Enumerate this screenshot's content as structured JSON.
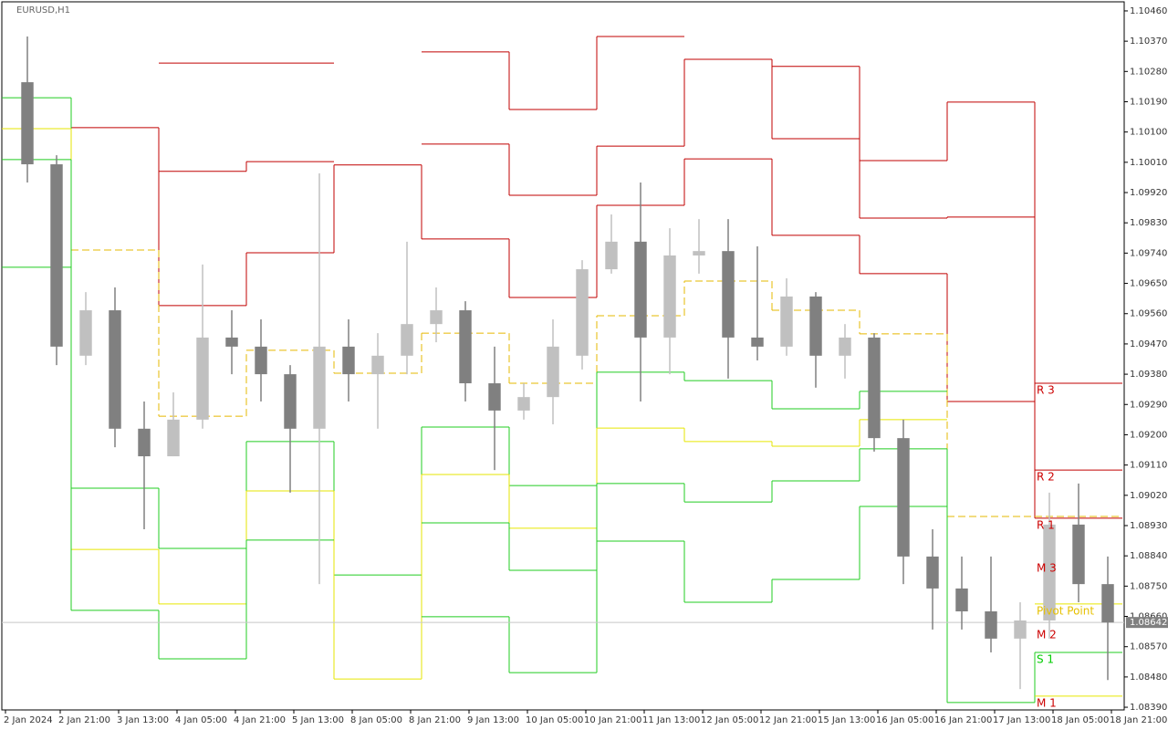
{
  "chart_data": {
    "type": "candlestick",
    "title": "EURUSD,H1",
    "up_color": "#c0c0c0",
    "down_color": "#808080",
    "open": [
      1.10248,
      1.10004,
      1.09435,
      1.0957,
      1.09218,
      1.09136,
      1.09245,
      1.09489,
      1.09462,
      1.0938,
      1.09218,
      1.09462,
      1.0938,
      1.09435,
      1.09529,
      1.0957,
      1.09353,
      1.09272,
      1.09312,
      1.09435,
      1.09692,
      1.09774,
      1.09489,
      1.09733,
      1.09746,
      1.09489,
      1.09462,
      1.09611,
      1.09435,
      1.09489,
      1.0919,
      1.08838,
      1.08743,
      1.08675,
      1.08594,
      1.08648,
      1.08933,
      1.08756
    ],
    "high": [
      1.10384,
      1.10031,
      1.09624,
      1.09638,
      1.09299,
      1.09326,
      1.09706,
      1.0957,
      1.09543,
      1.09407,
      1.09977,
      1.09543,
      1.09502,
      1.09774,
      1.09638,
      1.09597,
      1.09462,
      1.09353,
      1.09543,
      1.09719,
      1.09855,
      1.0995,
      1.09814,
      1.09841,
      1.09841,
      1.0976,
      1.09665,
      1.09624,
      1.09529,
      1.09502,
      1.09245,
      1.08919,
      1.08838,
      1.08838,
      1.08702,
      1.09028,
      1.09055,
      1.08838
    ],
    "low": [
      1.0995,
      1.09407,
      1.09407,
      1.09163,
      1.08919,
      1.09136,
      1.09218,
      1.0938,
      1.09299,
      1.09028,
      1.08756,
      1.09299,
      1.09218,
      1.0938,
      1.09475,
      1.09299,
      1.09095,
      1.09245,
      1.09231,
      1.09394,
      1.09679,
      1.09299,
      1.0938,
      1.09679,
      1.09367,
      1.09421,
      1.09435,
      1.0934,
      1.09367,
      1.0915,
      1.08756,
      1.08621,
      1.08621,
      1.08553,
      1.08444,
      1.08594,
      1.08702,
      1.08471
    ],
    "close": [
      1.10004,
      1.09462,
      1.0957,
      1.09218,
      1.09136,
      1.09245,
      1.09489,
      1.09462,
      1.0938,
      1.09218,
      1.09462,
      1.0938,
      1.09435,
      1.09529,
      1.0957,
      1.09353,
      1.09272,
      1.09312,
      1.09462,
      1.09692,
      1.09774,
      1.09489,
      1.09733,
      1.09746,
      1.09489,
      1.09462,
      1.09611,
      1.09435,
      1.09489,
      1.0919,
      1.08838,
      1.08743,
      1.08675,
      1.08594,
      1.08648,
      1.08933,
      1.08756,
      1.08642
    ],
    "levels": [
      {
        "color": "#c00000",
        "values": [
          null,
          null,
          1.10305,
          1.10305,
          null,
          1.10338,
          1.10167,
          1.10384,
          null,
          1.10295,
          1.10015,
          1.10189,
          1.09353
        ]
      },
      {
        "color": "#c00000",
        "values": [
          null,
          null,
          1.09983,
          1.10012,
          null,
          1.10064,
          1.09912,
          1.10058,
          1.10316,
          1.1008,
          1.09844,
          1.09847,
          1.09095
        ]
      },
      {
        "color": "#c00000",
        "values": [
          null,
          1.10113,
          1.09584,
          1.09741,
          1.10002,
          1.09782,
          1.09608,
          1.09882,
          1.1002,
          1.09793,
          1.09679,
          1.09299,
          1.08952
        ]
      },
      {
        "color": "#e6b800",
        "dashed": true,
        "values": [
          null,
          1.09749,
          1.09255,
          1.09451,
          1.09383,
          1.09502,
          1.09353,
          1.09554,
          1.09657,
          1.0957,
          1.095,
          1.08957,
          1.08957
        ]
      },
      {
        "color": "#22cc22",
        "values": [
          1.10202,
          1.09041,
          1.08862,
          1.0918,
          1.08783,
          1.09223,
          1.09049,
          1.09386,
          1.09361,
          1.09277,
          1.09329,
          null,
          null
        ]
      },
      {
        "color": "#e6e600",
        "values": [
          1.1011,
          1.08859,
          1.08697,
          1.09033,
          1.08474,
          1.09082,
          1.08922,
          1.0922,
          1.0918,
          1.09166,
          1.09245,
          null,
          1.08697
        ]
      },
      {
        "color": "#22cc22",
        "values": [
          1.10018,
          1.08678,
          1.08534,
          1.08887,
          null,
          1.08938,
          1.08797,
          1.09055,
          1.09,
          1.09063,
          1.09158,
          1.08404,
          1.08553
        ]
      },
      {
        "color": "#22cc22",
        "values": [
          1.09698,
          null,
          null,
          null,
          null,
          1.08659,
          1.08493,
          1.08884,
          1.08702,
          1.0877,
          1.08987,
          null,
          null
        ]
      },
      {
        "color": "#e6e600",
        "values": [
          null,
          null,
          null,
          null,
          null,
          null,
          null,
          null,
          null,
          null,
          null,
          null,
          1.08423
        ]
      }
    ],
    "annotations": [
      {
        "text": "R 3",
        "y": 1.09353,
        "color": "#cc0000"
      },
      {
        "text": "R 2",
        "y": 1.09095,
        "color": "#cc0000"
      },
      {
        "text": "R 1",
        "y": 1.08952,
        "color": "#cc0000"
      },
      {
        "text": "M 3",
        "y": 1.08824,
        "color": "#cc0000"
      },
      {
        "text": "Pivot Point",
        "y": 1.08697,
        "color": "#e6c000"
      },
      {
        "text": "M 2",
        "y": 1.08626,
        "color": "#cc0000"
      },
      {
        "text": "S 1",
        "y": 1.08553,
        "color": "#00cc00"
      },
      {
        "text": "M 1",
        "y": 1.08423,
        "color": "#cc0000"
      }
    ],
    "last_price": 1.08642,
    "xlim": [
      5,
      312.5
    ],
    "ylim": [
      1.08382,
      1.10487
    ],
    "xticks": [
      {
        "value": 6,
        "label": "2 Jan 2024"
      },
      {
        "value": 21,
        "label": "2 Jan 21:00"
      },
      {
        "value": 37,
        "label": "3 Jan 13:00"
      },
      {
        "value": 53,
        "label": "4 Jan 05:00"
      },
      {
        "value": 69,
        "label": "4 Jan 21:00"
      },
      {
        "value": 85,
        "label": "5 Jan 13:00"
      },
      {
        "value": 101,
        "label": "8 Jan 05:00"
      },
      {
        "value": 117,
        "label": "8 Jan 21:00"
      },
      {
        "value": 133,
        "label": "9 Jan 13:00"
      },
      {
        "value": 149,
        "label": "10 Jan 05:00"
      },
      {
        "value": 165,
        "label": "10 Jan 21:00"
      },
      {
        "value": 181,
        "label": "11 Jan 13:00"
      },
      {
        "value": 197,
        "label": "12 Jan 05:00"
      },
      {
        "value": 213,
        "label": "12 Jan 21:00"
      },
      {
        "value": 229,
        "label": "15 Jan 13:00"
      },
      {
        "value": 245,
        "label": "16 Jan 05:00"
      },
      {
        "value": 261,
        "label": "16 Jan 21:00"
      },
      {
        "value": 277,
        "label": "17 Jan 13:00"
      },
      {
        "value": 293,
        "label": "18 Jan 05:00"
      },
      {
        "value": 309,
        "label": "18 Jan 21:00"
      }
    ],
    "yticks": [
      {
        "value": 1.1046,
        "label": "1.10460"
      },
      {
        "value": 1.1037,
        "label": "1.10370"
      },
      {
        "value": 1.1028,
        "label": "1.10280"
      },
      {
        "value": 1.1019,
        "label": "1.10190"
      },
      {
        "value": 1.101,
        "label": "1.10100"
      },
      {
        "value": 1.1001,
        "label": "1.10010"
      },
      {
        "value": 1.0992,
        "label": "1.09920"
      },
      {
        "value": 1.0983,
        "label": "1.09830"
      },
      {
        "value": 1.0974,
        "label": "1.09740"
      },
      {
        "value": 1.0965,
        "label": "1.09650"
      },
      {
        "value": 1.0956,
        "label": "1.09560"
      },
      {
        "value": 1.0947,
        "label": "1.09470"
      },
      {
        "value": 1.0938,
        "label": "1.09380"
      },
      {
        "value": 1.0929,
        "label": "1.09290"
      },
      {
        "value": 1.092,
        "label": "1.09200"
      },
      {
        "value": 1.0911,
        "label": "1.09110"
      },
      {
        "value": 1.0902,
        "label": "1.09020"
      },
      {
        "value": 1.0893,
        "label": "1.08930"
      },
      {
        "value": 1.0884,
        "label": "1.08840"
      },
      {
        "value": 1.0875,
        "label": "1.08750"
      },
      {
        "value": 1.0866,
        "label": "1.08660"
      },
      {
        "value": 1.0857,
        "label": "1.08570"
      },
      {
        "value": 1.0848,
        "label": "1.08480"
      },
      {
        "value": 1.0839,
        "label": "1.08390"
      }
    ]
  }
}
